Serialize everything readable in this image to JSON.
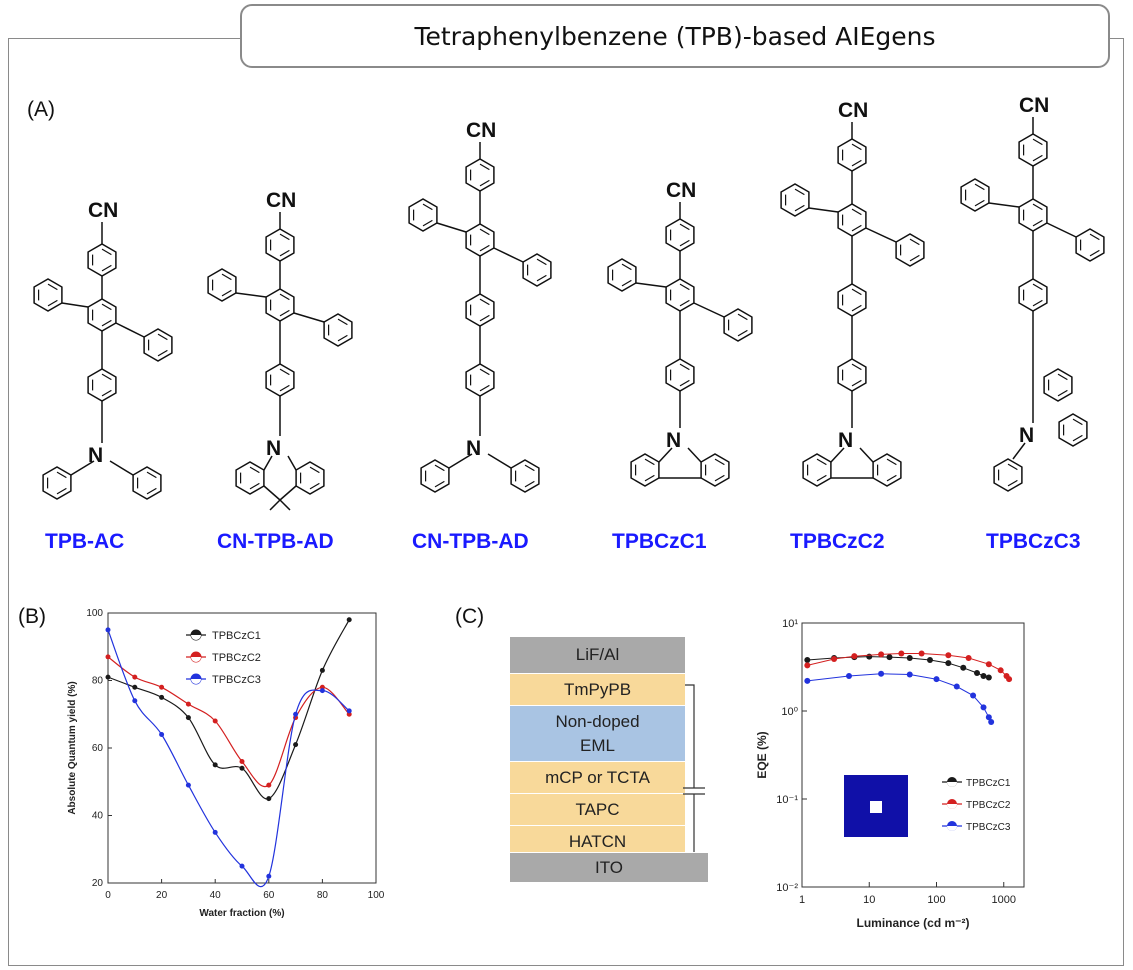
{
  "title": "Tetraphenylbenzene (TPB)-based AIEgens",
  "panel_labels": {
    "a": "(A)",
    "b": "(B)",
    "c": "(C)"
  },
  "molecules": [
    {
      "name": "TPB-AC",
      "atom_labels": [
        "CN",
        "N"
      ]
    },
    {
      "name": "CN-TPB-AD",
      "atom_labels": [
        "CN",
        "N"
      ]
    },
    {
      "name": "CN-TPB-AD",
      "atom_labels": [
        "CN",
        "N"
      ]
    },
    {
      "name": "TPBCzC1",
      "atom_labels": [
        "CN",
        "N"
      ]
    },
    {
      "name": "TPBCzC2",
      "atom_labels": [
        "CN",
        "N"
      ]
    },
    {
      "name": "TPBCzC3",
      "atom_labels": [
        "CN",
        "N"
      ]
    }
  ],
  "device": {
    "layers": [
      "LiF/Al",
      "TmPyPB",
      "Non-doped EML",
      "mCP or TCTA",
      "TAPC",
      "HATCN",
      "ITO"
    ],
    "colors": {
      "electrode": "#a9a9a9",
      "transport": "#f8d99a",
      "eml": "#a9c4e3"
    }
  },
  "chart_data": [
    {
      "type": "line",
      "xlabel": "Water fraction (%)",
      "ylabel": "Absolute Quantum yield (%)",
      "xlim": [
        0,
        100
      ],
      "ylim": [
        20,
        100
      ],
      "xticks": [
        0,
        20,
        40,
        60,
        80,
        100
      ],
      "yticks": [
        20,
        40,
        60,
        80,
        100
      ],
      "legend_position": "top-center",
      "series": [
        {
          "name": "TPBCzC1",
          "color": "#1a1a1a",
          "x": [
            0,
            10,
            20,
            30,
            40,
            50,
            60,
            70,
            80,
            90
          ],
          "y": [
            81,
            78,
            75,
            69,
            55,
            54,
            45,
            61,
            83,
            98
          ]
        },
        {
          "name": "TPBCzC2",
          "color": "#d42020",
          "x": [
            0,
            10,
            20,
            30,
            40,
            50,
            60,
            70,
            80,
            90
          ],
          "y": [
            87,
            81,
            78,
            73,
            68,
            56,
            49,
            69,
            78,
            70
          ]
        },
        {
          "name": "TPBCzC3",
          "color": "#2233dd",
          "x": [
            0,
            10,
            20,
            30,
            40,
            50,
            60,
            70,
            80,
            90
          ],
          "y": [
            95,
            74,
            64,
            49,
            35,
            25,
            22,
            70,
            77,
            71
          ]
        }
      ]
    },
    {
      "type": "scatter",
      "xlabel": "Luminance (cd m⁻²)",
      "ylabel": "EQE (%)",
      "xscale": "log",
      "yscale": "log",
      "xlim": [
        1,
        2000
      ],
      "ylim": [
        0.01,
        10
      ],
      "xticks": [
        "1",
        "10",
        "100",
        "1000"
      ],
      "yticks": [
        "10⁻²",
        "10⁻¹",
        "10⁰",
        "10¹"
      ],
      "legend_position": "bottom-right",
      "series": [
        {
          "name": "TPBCzC1",
          "color": "#1a1a1a",
          "x": [
            1.2,
            3,
            6,
            10,
            20,
            40,
            80,
            150,
            250,
            400,
            500,
            600
          ],
          "y": [
            3.8,
            4.0,
            4.1,
            4.15,
            4.1,
            4.0,
            3.8,
            3.5,
            3.1,
            2.7,
            2.5,
            2.4
          ]
        },
        {
          "name": "TPBCzC2",
          "color": "#d42020",
          "x": [
            1.2,
            3,
            6,
            15,
            30,
            60,
            150,
            300,
            600,
            900,
            1100,
            1200
          ],
          "y": [
            3.3,
            3.9,
            4.2,
            4.4,
            4.5,
            4.5,
            4.3,
            4.0,
            3.4,
            2.9,
            2.5,
            2.3
          ]
        },
        {
          "name": "TPBCzC3",
          "color": "#2233dd",
          "x": [
            1.2,
            5,
            15,
            40,
            100,
            200,
            350,
            500,
            600,
            650
          ],
          "y": [
            2.2,
            2.5,
            2.65,
            2.6,
            2.3,
            1.9,
            1.5,
            1.1,
            0.85,
            0.75
          ]
        }
      ]
    }
  ]
}
